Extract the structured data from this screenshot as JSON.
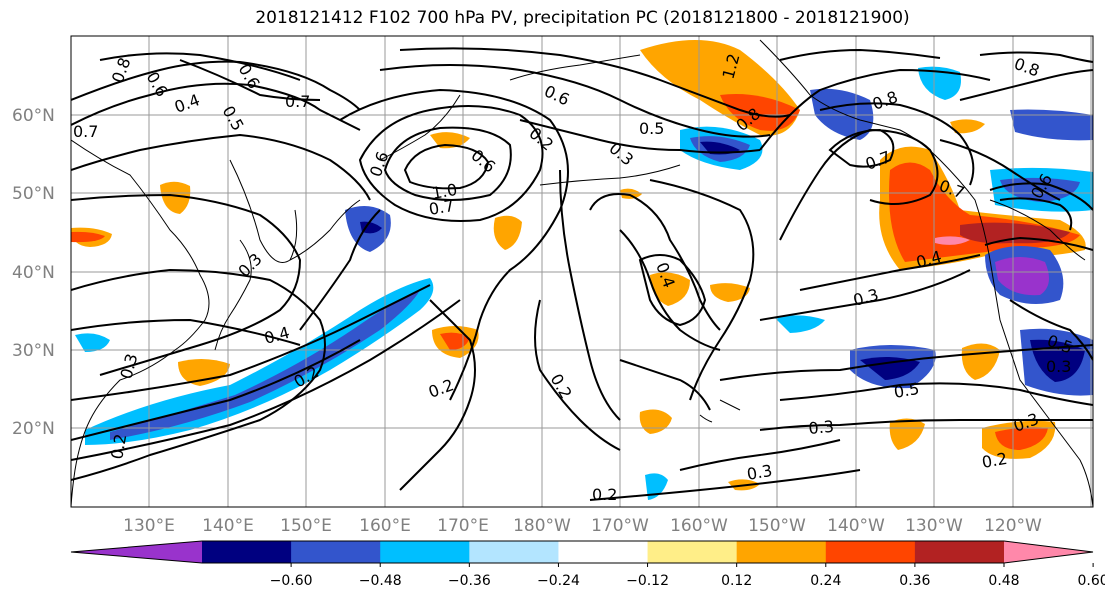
{
  "title": "2018121412 F102 700 hPa PV, precipitation PC (2018121800 - 2018121900)",
  "lat_labels": [
    "60°N",
    "50°N",
    "40°N",
    "30°N",
    "20°N"
  ],
  "lon_labels": [
    "130°E",
    "140°E",
    "150°E",
    "160°E",
    "170°E",
    "180°W",
    "170°W",
    "160°W",
    "150°W",
    "140°W",
    "130°W",
    "120°W"
  ],
  "colorbar": {
    "colors": [
      "#9933cc",
      "#000080",
      "#3355cc",
      "#00bfff",
      "#b3e5ff",
      "#ffffff",
      "#ffee88",
      "#ffa500",
      "#ff4500",
      "#b22222",
      "#ff88aa"
    ],
    "tick_labels": [
      "−0.60",
      "−0.48",
      "−0.36",
      "−0.24",
      "−0.12",
      "0.12",
      "0.24",
      "0.36",
      "0.48",
      "0.60"
    ]
  },
  "contour_labels": [
    "0.8",
    "0.6",
    "0.5",
    "0.7",
    "0.7",
    "0.4",
    "0.6",
    "0.6",
    "1.2",
    "0.8",
    "0.8",
    "0.7",
    "0.6",
    "0.5",
    "0.2",
    "0.3",
    "1.0",
    "0.7",
    "0.6",
    "0.7",
    "0.3",
    "0.4",
    "0.4",
    "0.3",
    "0.4",
    "0.5",
    "0.2",
    "0.2",
    "0.2",
    "0.3",
    "0.5",
    "0.3",
    "0.3",
    "0.2",
    "0.2",
    "0.3",
    "0.2",
    "0.3",
    "0.8",
    "0.6"
  ]
}
